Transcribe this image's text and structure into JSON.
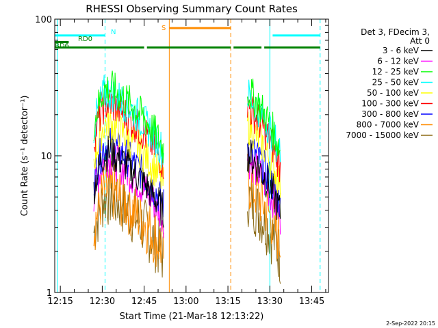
{
  "chart_data": {
    "type": "line",
    "title": "RHESSI Observing Summary Count Rates",
    "xlabel": "Start Time (21-Mar-18 12:13:22)",
    "ylabel": "Count Rate (s⁻¹ detector⁻¹)",
    "y_scale": "log",
    "ylim": [
      1,
      100
    ],
    "xlim_minutes": [
      "12:13",
      "13:51"
    ],
    "x_ticks": [
      "12:15",
      "12:30",
      "12:45",
      "13:00",
      "13:15",
      "13:30",
      "13:45"
    ],
    "y_ticks": [
      "1",
      "10",
      "100"
    ],
    "legend_header": [
      "Det 3, FDecim 3,",
      "Att 0"
    ],
    "legend_position": "top-right",
    "timestamp": "2-Sep-2022 20:15",
    "series": [
      {
        "name": "3 - 6 keV",
        "color": "#000000",
        "level": [
          10.5,
          10.5
        ]
      },
      {
        "name": "6 - 12 keV",
        "color": "#ff00ff",
        "level": [
          9.5,
          9.5
        ]
      },
      {
        "name": "12 - 25 keV",
        "color": "#00ff00",
        "level": [
          31,
          30
        ]
      },
      {
        "name": "25 - 50 keV",
        "color": "#00ffff",
        "level": [
          29,
          28
        ]
      },
      {
        "name": "50 - 100 keV",
        "color": "#ffff00",
        "level": [
          17,
          17
        ]
      },
      {
        "name": "100 - 300 keV",
        "color": "#ff0000",
        "level": [
          24,
          23
        ]
      },
      {
        "name": "300 - 800 keV",
        "color": "#0000ff",
        "level": [
          12,
          12
        ]
      },
      {
        "name": "800 - 7000 keV",
        "color": "#ff8c00",
        "level": [
          5.5,
          6.5
        ]
      },
      {
        "name": "7000 - 15000 keV",
        "color": "#8b6914",
        "level": [
          5,
          5
        ]
      }
    ],
    "data_intervals": [
      {
        "start": "12:27",
        "end": "12:52"
      },
      {
        "start": "13:22",
        "end": "13:34"
      }
    ],
    "flag_bars": [
      {
        "label": "N",
        "color": "#00ffff",
        "segments": [
          [
            "12:13",
            "12:31"
          ],
          [
            "13:31",
            "13:48"
          ]
        ],
        "level": 76
      },
      {
        "label": "S",
        "color": "#ff8c00",
        "segments": [
          [
            "12:54",
            "13:16"
          ]
        ],
        "level": 86
      },
      {
        "label": "RD0",
        "color": "#008000",
        "segments": [
          [
            "12:13",
            "12:18"
          ]
        ],
        "level": 68
      },
      {
        "label": "BD6",
        "color": "#008000",
        "segments": [
          [
            "12:13",
            "12:19"
          ],
          [
            "12:19",
            "12:45"
          ],
          [
            "12:46",
            "13:16"
          ],
          [
            "13:17",
            "13:27"
          ],
          [
            "13:28",
            "13:48"
          ]
        ],
        "level": 62
      }
    ],
    "vertical_lines": [
      {
        "time": "12:14",
        "color": "#00ffff",
        "style": "solid"
      },
      {
        "time": "12:31",
        "color": "#00ffff",
        "style": "dashed"
      },
      {
        "time": "12:54",
        "color": "#ff8c00",
        "style": "solid"
      },
      {
        "time": "13:16",
        "color": "#ff8c00",
        "style": "dashed"
      },
      {
        "time": "13:30",
        "color": "#00ffff",
        "style": "solid"
      },
      {
        "time": "13:48",
        "color": "#00ffff",
        "style": "dashed"
      }
    ]
  }
}
